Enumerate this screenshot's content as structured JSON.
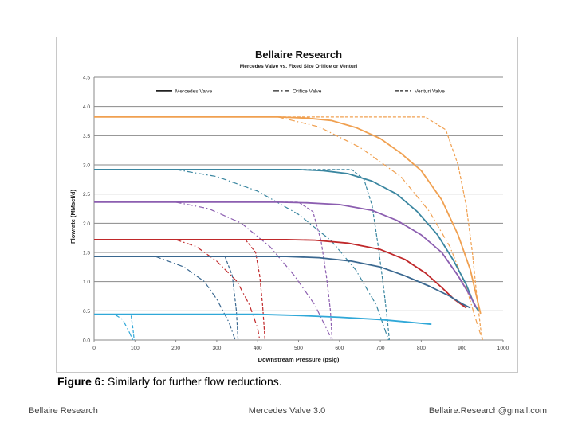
{
  "figure": {
    "caption_bold": "Figure 6:",
    "caption_text": " Similarly for further flow reductions."
  },
  "footer": {
    "left": "Bellaire Research",
    "center": "Mercedes Valve 3.0",
    "right": "Bellaire.Research@gmail.com"
  },
  "chart_data": {
    "type": "line",
    "title": "Bellaire Research",
    "subtitle": "Mercedes Valve vs. Fixed Size Orifice or Venturi",
    "xlabel": "Downstream Pressure (psig)",
    "ylabel": "Flowrate (MMscf/d)",
    "xlim": [
      0,
      1000
    ],
    "ylim": [
      0,
      4.5
    ],
    "xticks": [
      "0",
      "100",
      "200",
      "300",
      "400",
      "500",
      "600",
      "700",
      "800",
      "900",
      "1000"
    ],
    "yticks": [
      "0.0",
      "0.5",
      "1.0",
      "1.5",
      "2.0",
      "2.5",
      "3.0",
      "3.5",
      "4.0",
      "4.5"
    ],
    "grid": "horizontal",
    "legend": [
      {
        "label": "Mercedes Valve",
        "style": "solid"
      },
      {
        "label": "Orifice Valve",
        "style": "dashdot"
      },
      {
        "label": "Venturi Valve",
        "style": "dashed"
      }
    ],
    "series": [
      {
        "name": "Mercedes Valve 3.8",
        "color": "#f0a050",
        "style": "solid",
        "points": [
          [
            0,
            3.82
          ],
          [
            450,
            3.82
          ],
          [
            520,
            3.8
          ],
          [
            580,
            3.76
          ],
          [
            640,
            3.64
          ],
          [
            700,
            3.45
          ],
          [
            750,
            3.2
          ],
          [
            800,
            2.9
          ],
          [
            850,
            2.4
          ],
          [
            890,
            1.8
          ],
          [
            920,
            1.2
          ],
          [
            940,
            0.6
          ],
          [
            945,
            0.45
          ]
        ]
      },
      {
        "name": "Orifice Valve 3.8",
        "color": "#f0a050",
        "style": "dashdot",
        "points": [
          [
            450,
            3.82
          ],
          [
            550,
            3.65
          ],
          [
            650,
            3.3
          ],
          [
            750,
            2.8
          ],
          [
            820,
            2.2
          ],
          [
            870,
            1.6
          ],
          [
            910,
            0.9
          ],
          [
            940,
            0.2
          ],
          [
            950,
            0.0
          ]
        ]
      },
      {
        "name": "Venturi Valve 3.8",
        "color": "#f0a050",
        "style": "dashed",
        "points": [
          [
            450,
            3.82
          ],
          [
            810,
            3.82
          ],
          [
            860,
            3.6
          ],
          [
            890,
            3.0
          ],
          [
            910,
            2.3
          ],
          [
            925,
            1.5
          ],
          [
            935,
            0.8
          ],
          [
            945,
            0.2
          ],
          [
            950,
            0.0
          ]
        ]
      },
      {
        "name": "Mercedes Valve 2.9",
        "color": "#3a86a0",
        "style": "solid",
        "points": [
          [
            0,
            2.92
          ],
          [
            500,
            2.92
          ],
          [
            560,
            2.9
          ],
          [
            620,
            2.85
          ],
          [
            680,
            2.72
          ],
          [
            740,
            2.5
          ],
          [
            790,
            2.2
          ],
          [
            840,
            1.8
          ],
          [
            880,
            1.35
          ],
          [
            910,
            0.95
          ],
          [
            930,
            0.6
          ],
          [
            940,
            0.5
          ]
        ]
      },
      {
        "name": "Orifice Valve 2.9",
        "color": "#3a86a0",
        "style": "dashdot",
        "points": [
          [
            200,
            2.92
          ],
          [
            300,
            2.8
          ],
          [
            400,
            2.55
          ],
          [
            500,
            2.15
          ],
          [
            580,
            1.7
          ],
          [
            640,
            1.2
          ],
          [
            690,
            0.6
          ],
          [
            720,
            0.0
          ]
        ]
      },
      {
        "name": "Venturi Valve 2.9",
        "color": "#3a86a0",
        "style": "dashed",
        "points": [
          [
            500,
            2.92
          ],
          [
            630,
            2.92
          ],
          [
            660,
            2.75
          ],
          [
            680,
            2.3
          ],
          [
            695,
            1.6
          ],
          [
            708,
            0.9
          ],
          [
            718,
            0.3
          ],
          [
            722,
            0.0
          ]
        ]
      },
      {
        "name": "Mercedes Valve 2.35",
        "color": "#8c5eb0",
        "style": "solid",
        "points": [
          [
            0,
            2.36
          ],
          [
            450,
            2.36
          ],
          [
            520,
            2.35
          ],
          [
            600,
            2.32
          ],
          [
            680,
            2.22
          ],
          [
            740,
            2.05
          ],
          [
            800,
            1.8
          ],
          [
            850,
            1.5
          ],
          [
            890,
            1.1
          ],
          [
            920,
            0.75
          ],
          [
            935,
            0.55
          ]
        ]
      },
      {
        "name": "Orifice Valve 2.35",
        "color": "#8c5eb0",
        "style": "dashdot",
        "points": [
          [
            200,
            2.36
          ],
          [
            280,
            2.25
          ],
          [
            360,
            2.0
          ],
          [
            430,
            1.6
          ],
          [
            490,
            1.1
          ],
          [
            540,
            0.6
          ],
          [
            575,
            0.1
          ],
          [
            580,
            0.0
          ]
        ]
      },
      {
        "name": "Venturi Valve 2.35",
        "color": "#8c5eb0",
        "style": "dashed",
        "points": [
          [
            420,
            2.36
          ],
          [
            500,
            2.36
          ],
          [
            535,
            2.2
          ],
          [
            555,
            1.7
          ],
          [
            568,
            1.1
          ],
          [
            578,
            0.5
          ],
          [
            582,
            0.0
          ]
        ]
      },
      {
        "name": "Mercedes Valve 1.7",
        "color": "#c0282a",
        "style": "solid",
        "points": [
          [
            0,
            1.72
          ],
          [
            470,
            1.72
          ],
          [
            540,
            1.71
          ],
          [
            620,
            1.66
          ],
          [
            700,
            1.55
          ],
          [
            760,
            1.38
          ],
          [
            810,
            1.15
          ],
          [
            850,
            0.9
          ],
          [
            880,
            0.7
          ],
          [
            900,
            0.6
          ],
          [
            910,
            0.55
          ]
        ]
      },
      {
        "name": "Orifice Valve 1.7",
        "color": "#c0282a",
        "style": "dashdot",
        "points": [
          [
            200,
            1.72
          ],
          [
            250,
            1.6
          ],
          [
            300,
            1.35
          ],
          [
            350,
            1.0
          ],
          [
            380,
            0.6
          ],
          [
            400,
            0.2
          ],
          [
            405,
            0.0
          ]
        ]
      },
      {
        "name": "Venturi Valve 1.7",
        "color": "#c0282a",
        "style": "dashed",
        "points": [
          [
            300,
            1.72
          ],
          [
            370,
            1.72
          ],
          [
            395,
            1.5
          ],
          [
            405,
            1.1
          ],
          [
            412,
            0.6
          ],
          [
            416,
            0.2
          ],
          [
            418,
            0.0
          ]
        ]
      },
      {
        "name": "Mercedes Valve 1.4",
        "color": "#3a6890",
        "style": "solid",
        "points": [
          [
            0,
            1.43
          ],
          [
            470,
            1.43
          ],
          [
            550,
            1.41
          ],
          [
            630,
            1.35
          ],
          [
            700,
            1.25
          ],
          [
            760,
            1.1
          ],
          [
            820,
            0.92
          ],
          [
            870,
            0.75
          ],
          [
            900,
            0.62
          ],
          [
            920,
            0.55
          ]
        ]
      },
      {
        "name": "Orifice Valve 1.4",
        "color": "#3a6890",
        "style": "dashdot",
        "points": [
          [
            150,
            1.43
          ],
          [
            220,
            1.25
          ],
          [
            270,
            1.0
          ],
          [
            300,
            0.7
          ],
          [
            330,
            0.3
          ],
          [
            345,
            0.0
          ]
        ]
      },
      {
        "name": "Venturi Valve 1.4",
        "color": "#3a6890",
        "style": "dashed",
        "points": [
          [
            250,
            1.43
          ],
          [
            320,
            1.43
          ],
          [
            338,
            1.1
          ],
          [
            348,
            0.5
          ],
          [
            352,
            0.0
          ]
        ]
      },
      {
        "name": "Mercedes Valve 0.44",
        "color": "#30a8d8",
        "style": "solid",
        "points": [
          [
            0,
            0.44
          ],
          [
            400,
            0.44
          ],
          [
            500,
            0.42
          ],
          [
            600,
            0.39
          ],
          [
            700,
            0.35
          ],
          [
            780,
            0.3
          ],
          [
            825,
            0.27
          ]
        ]
      },
      {
        "name": "Orifice Valve 0.44",
        "color": "#30a8d8",
        "style": "dashdot",
        "points": [
          [
            50,
            0.44
          ],
          [
            70,
            0.35
          ],
          [
            85,
            0.15
          ],
          [
            95,
            0.0
          ]
        ]
      },
      {
        "name": "Venturi Valve 0.44",
        "color": "#30a8d8",
        "style": "dashed",
        "points": [
          [
            70,
            0.44
          ],
          [
            90,
            0.44
          ],
          [
            95,
            0.2
          ],
          [
            98,
            0.0
          ]
        ]
      }
    ]
  }
}
